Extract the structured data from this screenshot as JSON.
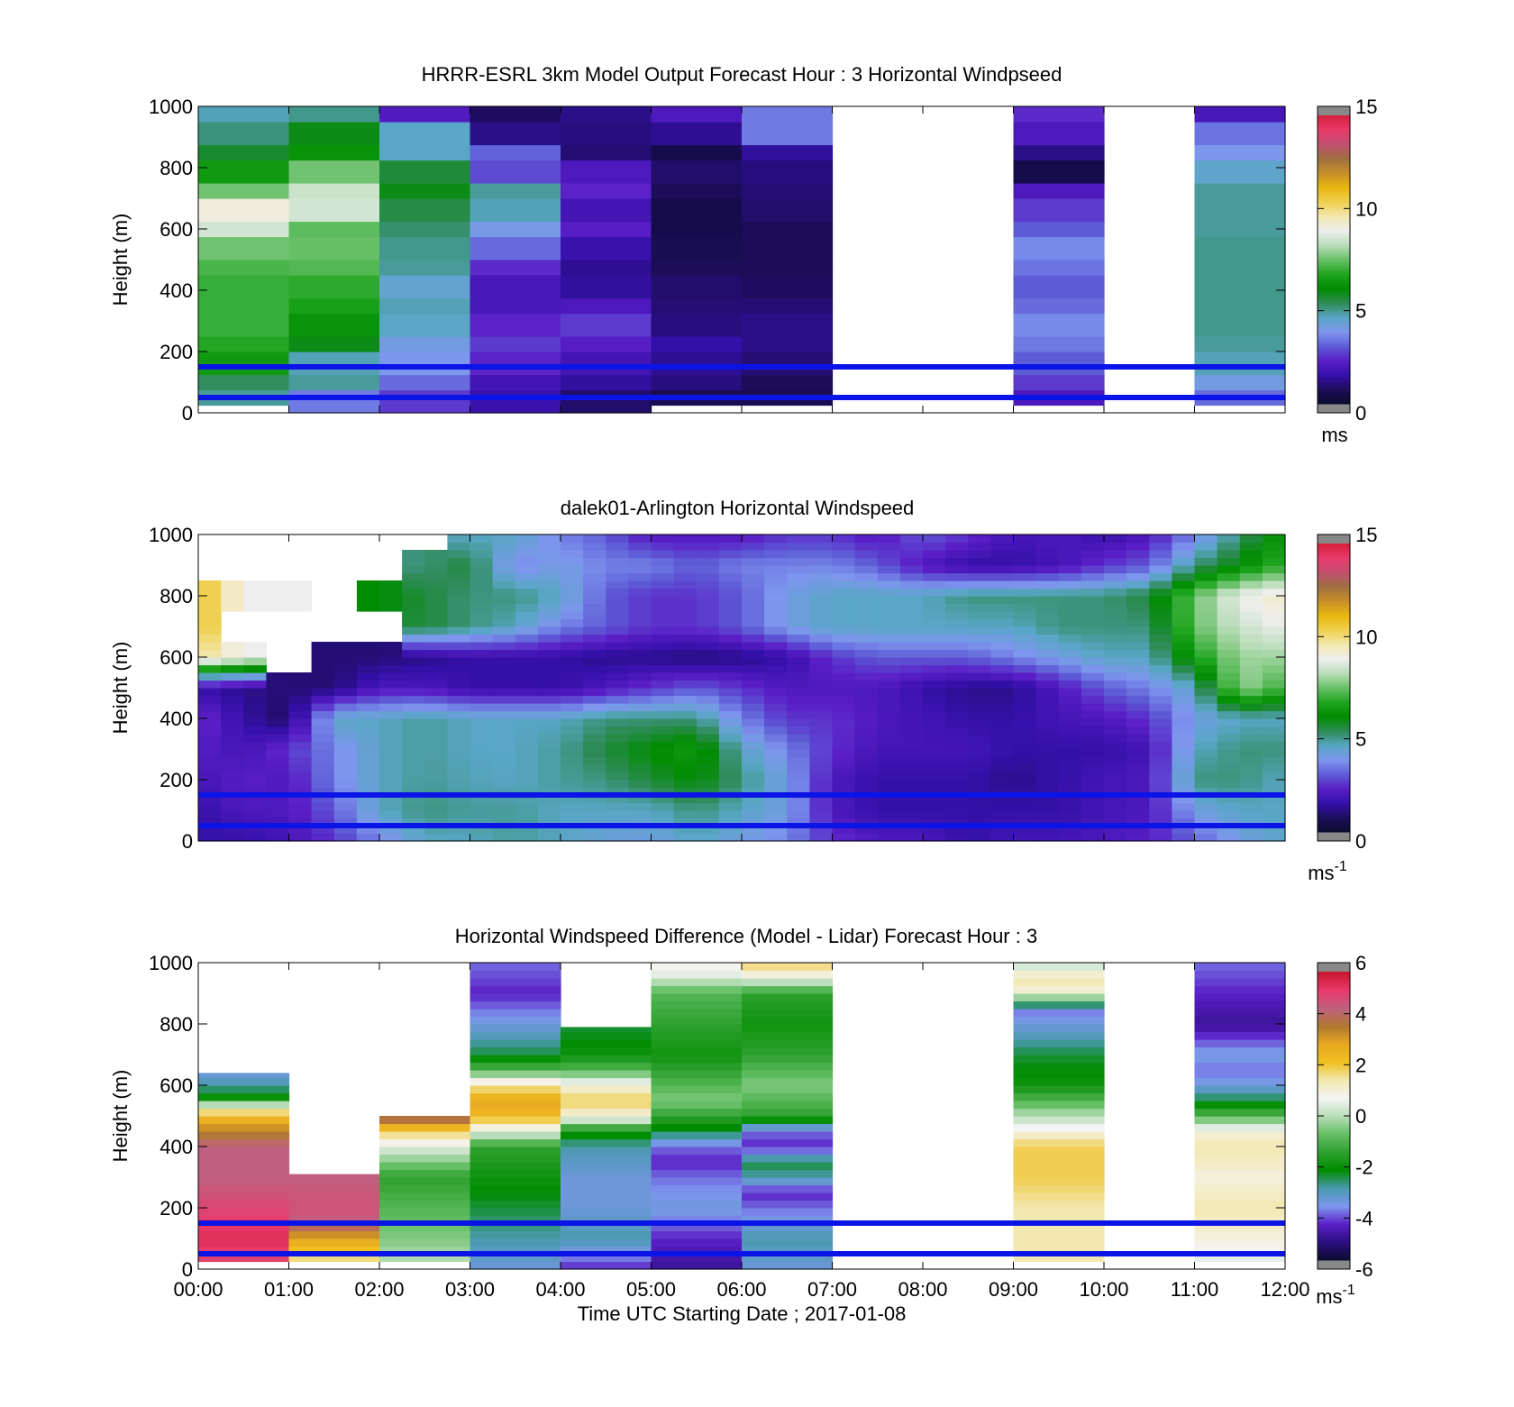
{
  "colors": {
    "windspeed_colormap": [
      "#0b0b2e",
      "#1c0d5a",
      "#3410a8",
      "#5a1ec6",
      "#5e5bd6",
      "#7e96ee",
      "#59a6c6",
      "#2e8b57",
      "#008c00",
      "#1fa51f",
      "#66bf66",
      "#b9ddb9",
      "#eeeeee",
      "#f2e8b0",
      "#f0d050",
      "#e8b810",
      "#c89028",
      "#a07040",
      "#c05070",
      "#e83a6a",
      "#d81f3c"
    ],
    "difference_colormap": [
      "#0b0b2e",
      "#2a0e80",
      "#5a1ec6",
      "#7e96ee",
      "#4a9ab0",
      "#008c00",
      "#2ea02e",
      "#66bf66",
      "#b9ddb9",
      "#f4f4f4",
      "#f2e8b0",
      "#f0c020",
      "#e8a820",
      "#b07830",
      "#c06080",
      "#e83a6a",
      "#c8142e"
    ],
    "reference_line": "#0a14e6",
    "missing": "#ffffff",
    "saturation_end": "#888888"
  },
  "chart_data": [
    {
      "type": "heatmap",
      "title": "HRRR-ESRL 3km Model Output   Forecast Hour : 3 Horizontal Windpseed",
      "xlabel": "",
      "ylabel": "Height (m)",
      "xlim_hours": [
        0,
        12
      ],
      "ylim": [
        0,
        1000
      ],
      "yticks": [
        "0",
        "200",
        "400",
        "600",
        "800",
        "1000"
      ],
      "xticks": [
        "",
        "",
        "",
        "",
        "",
        "",
        "",
        "",
        "",
        "",
        "",
        "",
        ""
      ],
      "colorbar": {
        "min": 0,
        "max": 15,
        "ticks": [
          "0",
          "5",
          "10",
          "15"
        ],
        "unit_base": "ms",
        "unit_exp": ""
      },
      "reference_lines_m": [
        50,
        150
      ],
      "columns": [
        {
          "t0": 0,
          "t1": 1,
          "bottom_m": 25,
          "values": [
            4.8,
            5.2,
            6.4,
            6.8,
            7.0,
            7.0,
            7.0,
            7.2,
            7.6,
            8.6,
            9.2,
            7.6,
            6.4,
            5.6,
            5.0,
            4.6
          ]
        },
        {
          "t0": 1,
          "t1": 2,
          "bottom_m": 0,
          "values": [
            3.4,
            4.8,
            4.6,
            5.8,
            6.2,
            6.6,
            6.9,
            7.3,
            7.5,
            7.4,
            8.6,
            8.5,
            7.6,
            6.2,
            5.8,
            4.9
          ]
        },
        {
          "t0": 2,
          "t1": 3,
          "bottom_m": 0,
          "values": [
            2.6,
            3.2,
            3.8,
            4.0,
            4.5,
            4.6,
            4.3,
            4.8,
            4.9,
            5.1,
            5.4,
            5.8,
            5.5,
            4.5,
            4.5,
            2.1
          ]
        },
        {
          "t0": 3,
          "t1": 4,
          "bottom_m": 0,
          "values": [
            1.6,
            1.8,
            2.3,
            2.6,
            2.3,
            1.9,
            1.9,
            2.4,
            3.2,
            3.9,
            4.6,
            4.8,
            2.8,
            3.1,
            1.2,
            0.8
          ]
        },
        {
          "t0": 4,
          "t1": 5,
          "bottom_m": 0,
          "values": [
            0.9,
            1.4,
            1.8,
            2.2,
            2.6,
            2.0,
            1.4,
            1.3,
            1.6,
            2.2,
            1.8,
            2.3,
            2.0,
            1.0,
            1.1,
            1.2
          ]
        },
        {
          "t0": 5,
          "t1": 6,
          "bottom_m": 25,
          "values": [
            0.6,
            1.1,
            1.3,
            1.5,
            1.1,
            1.0,
            0.9,
            0.7,
            0.6,
            0.5,
            0.5,
            0.7,
            0.9,
            0.5,
            1.3,
            2.0
          ]
        },
        {
          "t0": 6,
          "t1": 7,
          "bottom_m": 25,
          "values": [
            0.6,
            0.7,
            1.0,
            1.2,
            1.2,
            1.0,
            0.8,
            0.7,
            0.7,
            0.7,
            0.9,
            1.0,
            1.1,
            1.4,
            3.4,
            3.4
          ]
        },
        {
          "t0": 9,
          "t1": 10,
          "bottom_m": 25,
          "values": [
            2.0,
            2.6,
            3.0,
            3.4,
            3.6,
            3.2,
            3.0,
            3.3,
            3.6,
            3.0,
            2.6,
            2.0,
            0.5,
            1.2,
            2.0,
            2.4
          ]
        },
        {
          "t0": 11,
          "t1": 12,
          "bottom_m": 25,
          "values": [
            3.2,
            4.0,
            4.6,
            4.8,
            4.9,
            4.9,
            4.9,
            4.9,
            4.9,
            4.8,
            4.8,
            4.8,
            4.4,
            3.8,
            3.3,
            1.9
          ]
        }
      ]
    },
    {
      "type": "heatmap",
      "title": "dalek01-Arlington  Horizontal Windspeed",
      "xlabel": "",
      "ylabel": "Height (m)",
      "xlim_hours": [
        0,
        12
      ],
      "ylim": [
        0,
        1000
      ],
      "yticks": [
        "0",
        "200",
        "400",
        "600",
        "800",
        "1000"
      ],
      "xticks": [
        "",
        "",
        "",
        "",
        "",
        "",
        "",
        "",
        "",
        "",
        "",
        "",
        ""
      ],
      "colorbar": {
        "min": 0,
        "max": 15,
        "ticks": [
          "0",
          "5",
          "10",
          "15"
        ],
        "unit_base": "ms",
        "unit_exp": "-1"
      },
      "reference_lines_m": [
        50,
        150
      ],
      "profiles_per_hour": 4,
      "anchor_times_hours": [
        0,
        0.5,
        1,
        1.5,
        2,
        2.5,
        3,
        3.5,
        4,
        4.5,
        5,
        5.5,
        6,
        6.5,
        7,
        7.5,
        8,
        8.5,
        9,
        9.5,
        10,
        10.5,
        11,
        11.5,
        12
      ],
      "anchor_heights_m": [
        0,
        100,
        200,
        300,
        400,
        500,
        600,
        700,
        800,
        900,
        1000
      ],
      "anchor_values": [
        [
          1.5,
          1.5,
          1.8,
          2.2,
          2.5,
          1.6,
          10.0,
          10.5,
          11.0,
          null,
          null
        ],
        [
          1.5,
          2.0,
          2.2,
          1.8,
          1.5,
          1.2,
          9.0,
          null,
          9.0,
          null,
          null
        ],
        [
          1.8,
          2.0,
          2.0,
          2.5,
          0.8,
          1.0,
          null,
          null,
          9.0,
          null,
          null
        ],
        [
          2.5,
          3.0,
          3.5,
          3.5,
          4.5,
          1.0,
          1.0,
          null,
          null,
          null,
          null
        ],
        [
          3.5,
          4.5,
          4.5,
          4.5,
          4.5,
          2.0,
          1.0,
          null,
          6.0,
          null,
          null
        ],
        [
          4.5,
          5.0,
          4.8,
          4.8,
          4.8,
          2.0,
          1.2,
          5.5,
          5.5,
          5.0,
          null
        ],
        [
          4.5,
          4.8,
          4.6,
          4.5,
          4.5,
          1.5,
          1.5,
          5.0,
          5.0,
          5.5,
          4.5
        ],
        [
          4.8,
          4.8,
          4.5,
          4.5,
          4.5,
          1.5,
          1.5,
          4.5,
          5.0,
          3.5,
          4.5
        ],
        [
          4.5,
          4.5,
          4.8,
          4.8,
          4.5,
          1.5,
          1.5,
          3.5,
          4.5,
          4.0,
          3.5
        ],
        [
          4.2,
          4.5,
          5.0,
          5.5,
          5.0,
          2.0,
          1.2,
          3.0,
          3.0,
          3.5,
          3.0
        ],
        [
          4.0,
          4.5,
          5.5,
          6.0,
          5.0,
          2.5,
          1.2,
          2.5,
          2.5,
          3.5,
          2.0
        ],
        [
          4.5,
          5.0,
          6.0,
          6.5,
          5.0,
          3.0,
          1.0,
          2.5,
          2.5,
          3.0,
          2.0
        ],
        [
          4.0,
          4.5,
          5.0,
          4.5,
          3.5,
          2.5,
          1.2,
          3.0,
          3.0,
          3.5,
          2.0
        ],
        [
          3.5,
          4.0,
          4.0,
          3.5,
          2.5,
          2.0,
          1.5,
          4.0,
          4.0,
          3.5,
          2.5
        ],
        [
          2.5,
          2.0,
          2.0,
          2.5,
          2.5,
          2.0,
          2.5,
          4.5,
          4.5,
          3.5,
          2.5
        ],
        [
          2.0,
          1.5,
          1.5,
          1.8,
          2.0,
          2.0,
          3.0,
          4.5,
          4.5,
          3.0,
          2.0
        ],
        [
          2.0,
          1.5,
          1.5,
          1.8,
          1.8,
          1.5,
          3.0,
          4.5,
          4.5,
          2.0,
          3.0
        ],
        [
          1.5,
          1.5,
          1.5,
          1.8,
          1.5,
          1.2,
          3.0,
          4.5,
          5.0,
          1.5,
          2.5
        ],
        [
          1.8,
          1.5,
          1.2,
          1.5,
          1.5,
          1.2,
          3.5,
          4.5,
          5.0,
          1.5,
          1.8
        ],
        [
          1.8,
          1.5,
          1.5,
          1.5,
          1.8,
          2.0,
          4.0,
          5.0,
          5.0,
          1.8,
          2.0
        ],
        [
          2.0,
          1.8,
          1.8,
          1.5,
          2.0,
          3.0,
          4.5,
          5.0,
          5.0,
          2.5,
          1.5
        ],
        [
          2.2,
          2.0,
          2.0,
          1.8,
          2.5,
          3.5,
          4.5,
          5.0,
          5.5,
          3.0,
          2.0
        ],
        [
          3.0,
          4.0,
          5.0,
          4.5,
          4.0,
          4.5,
          6.5,
          7.5,
          7.5,
          5.0,
          3.5
        ],
        [
          4.0,
          4.5,
          5.0,
          5.0,
          4.5,
          8.0,
          8.0,
          8.5,
          9.0,
          6.0,
          5.0
        ],
        [
          4.5,
          4.5,
          4.5,
          5.0,
          4.5,
          7.0,
          8.0,
          9.0,
          9.5,
          7.0,
          6.5
        ]
      ]
    },
    {
      "type": "heatmap",
      "title": "Horizontal Windspeed Difference (Model - Lidar) Forecast Hour : 3",
      "xlabel": "Time UTC  Starting Date ; 2017-01-08",
      "ylabel": "Height (m)",
      "xlim_hours": [
        0,
        12
      ],
      "ylim": [
        0,
        1000
      ],
      "yticks": [
        "0",
        "200",
        "400",
        "600",
        "800",
        "1000"
      ],
      "xticks": [
        "00:00",
        "01:00",
        "02:00",
        "03:00",
        "04:00",
        "05:00",
        "06:00",
        "07:00",
        "08:00",
        "09:00",
        "10:00",
        "11:00",
        "12:00"
      ],
      "colorbar": {
        "min": -6,
        "max": 6,
        "ticks": [
          "-6",
          "-4",
          "-2",
          "0",
          "2",
          "4",
          "6"
        ],
        "unit_base": "ms",
        "unit_exp": "-1"
      },
      "reference_lines_m": [
        50,
        150
      ],
      "columns": [
        {
          "t0": 0,
          "t1": 1,
          "bottom_m": 25,
          "anchor_heights_m": [
            25,
            100,
            200,
            300,
            400,
            480,
            520,
            560,
            600,
            640
          ],
          "anchor_values": [
            5.0,
            5.5,
            5.0,
            4.5,
            4.5,
            3.0,
            1.5,
            -2.0,
            -3.0,
            -3.5
          ]
        },
        {
          "t0": 1,
          "t1": 2,
          "bottom_m": 25,
          "anchor_heights_m": [
            25,
            100,
            150,
            200,
            310
          ],
          "anchor_values": [
            1.5,
            3.0,
            4.5,
            4.8,
            4.5
          ]
        },
        {
          "t0": 2,
          "t1": 3,
          "bottom_m": 25,
          "anchor_heights_m": [
            25,
            100,
            200,
            300,
            400,
            450,
            500
          ],
          "anchor_values": [
            0.0,
            -0.5,
            -1.0,
            -1.5,
            0.5,
            2.0,
            4.5
          ]
        },
        {
          "t0": 3,
          "t1": 4,
          "bottom_m": 0,
          "anchor_heights_m": [
            0,
            100,
            200,
            300,
            400,
            450,
            500,
            550,
            600,
            650,
            700,
            800,
            900,
            1000
          ],
          "anchor_values": [
            -3.5,
            -3.0,
            -2.5,
            -2.0,
            -1.5,
            0.5,
            2.5,
            3.0,
            1.5,
            -1.0,
            -2.5,
            -3.5,
            -4.5,
            -4.0
          ]
        },
        {
          "t0": 4,
          "t1": 5,
          "bottom_m": 0,
          "anchor_heights_m": [
            0,
            100,
            200,
            300,
            400,
            450,
            500,
            550,
            600,
            650,
            700,
            790
          ],
          "anchor_values": [
            -4.5,
            -3.0,
            -3.5,
            -3.5,
            -3.0,
            -2.0,
            1.0,
            2.0,
            1.0,
            -1.0,
            -2.0,
            -2.5
          ]
        },
        {
          "t0": 5,
          "t1": 6,
          "bottom_m": 0,
          "anchor_heights_m": [
            0,
            100,
            200,
            300,
            350,
            400,
            450,
            500,
            550,
            600,
            700,
            800,
            900,
            960,
            1000
          ],
          "anchor_values": [
            -5.0,
            -4.5,
            -3.5,
            -4.0,
            -4.5,
            -4.0,
            -2.5,
            -1.5,
            -0.5,
            -1.0,
            -2.0,
            -1.5,
            -1.0,
            0.5,
            1.0
          ]
        },
        {
          "t0": 6,
          "t1": 7,
          "bottom_m": 0,
          "anchor_heights_m": [
            0,
            100,
            150,
            200,
            250,
            300,
            350,
            400,
            450,
            500,
            550,
            600,
            700,
            800,
            900,
            960,
            1000
          ],
          "anchor_values": [
            -3.5,
            -3.0,
            -3.5,
            -4.0,
            -4.5,
            -3.0,
            -2.5,
            -4.5,
            -4.0,
            -1.5,
            -1.0,
            -0.5,
            -1.5,
            -2.0,
            -1.5,
            1.0,
            2.0
          ]
        },
        {
          "t0": 9,
          "t1": 10,
          "bottom_m": 25,
          "anchor_heights_m": [
            25,
            100,
            200,
            300,
            400,
            450,
            500,
            550,
            600,
            700,
            800,
            850,
            900,
            950,
            1000
          ],
          "anchor_values": [
            1.5,
            1.5,
            1.5,
            2.0,
            2.0,
            1.0,
            0.0,
            -1.0,
            -2.0,
            -2.5,
            -3.5,
            -4.0,
            1.0,
            1.5,
            0.0
          ]
        },
        {
          "t0": 11,
          "t1": 12,
          "bottom_m": 25,
          "anchor_heights_m": [
            25,
            100,
            200,
            300,
            400,
            450,
            500,
            550,
            600,
            650,
            700,
            800,
            900,
            1000
          ],
          "anchor_values": [
            0.5,
            1.0,
            1.5,
            1.0,
            1.5,
            1.0,
            -1.0,
            -2.5,
            -3.5,
            -4.0,
            -3.5,
            -5.0,
            -4.5,
            -4.0
          ]
        }
      ]
    }
  ]
}
